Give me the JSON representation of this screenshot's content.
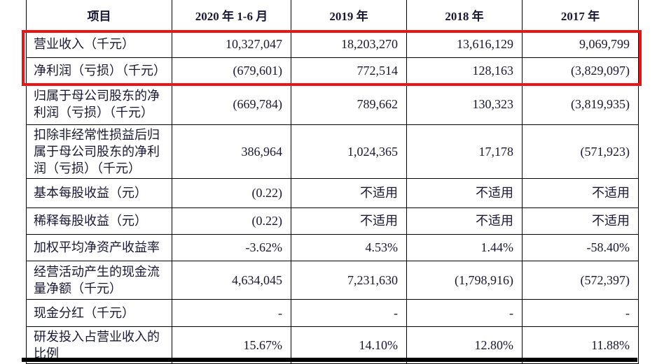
{
  "table": {
    "columns": [
      "项目",
      "2020 年 1-6 月",
      "2019 年",
      "2018 年",
      "2017 年"
    ],
    "rows": [
      {
        "label": "营业收入（千元）",
        "values": [
          "10,327,047",
          "18,203,270",
          "13,616,129",
          "9,069,799"
        ]
      },
      {
        "label": "净利润（亏损）（千元）",
        "values": [
          "(679,601)",
          "772,514",
          "128,163",
          "(3,829,097)"
        ]
      },
      {
        "label": "归属于母公司股东的净\n利润（亏损）（千元）",
        "values": [
          "(669,784)",
          "789,662",
          "130,323",
          "(3,819,935)"
        ]
      },
      {
        "label": "扣除非经常性损益后归\n属于母公司股东的净利\n润（亏损）（千元）",
        "values": [
          "386,964",
          "1,024,365",
          "17,178",
          "(571,923)"
        ]
      },
      {
        "label": "基本每股收益（元）",
        "values": [
          "(0.22)",
          "不适用",
          "不适用",
          "不适用"
        ]
      },
      {
        "label": "稀释每股收益（元）",
        "values": [
          "(0.22)",
          "不适用",
          "不适用",
          "不适用"
        ]
      },
      {
        "label": "加权平均净资产收益率",
        "values": [
          "-3.62%",
          "4.53%",
          "1.44%",
          "-58.40%"
        ]
      },
      {
        "label": "经营活动产生的现金流\n量净额（千元）",
        "values": [
          "4,634,045",
          "7,231,630",
          "(1,798,916)",
          "(572,397)"
        ]
      },
      {
        "label": "现金分红（千元）",
        "values": [
          "-",
          "-",
          "-",
          "-"
        ]
      },
      {
        "label": "研发投入占营业收入的\n比例",
        "values": [
          "15.67%",
          "14.10%",
          "12.80%",
          "11.88%"
        ]
      }
    ]
  },
  "annotation": {
    "type": "red-rectangle-highlight",
    "color": "#ee1313",
    "covers_rows": [
      "营业收入（千元）",
      "净利润（亏损）（千元）"
    ]
  }
}
